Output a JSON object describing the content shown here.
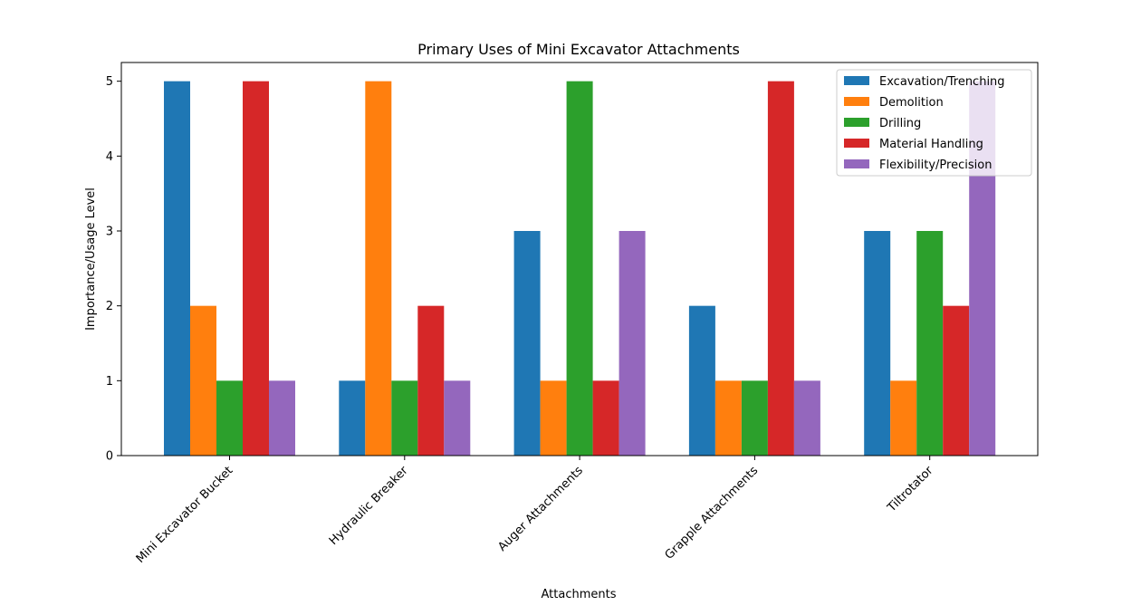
{
  "chart_data": {
    "type": "bar",
    "title": "Primary Uses of Mini Excavator Attachments",
    "xlabel": "Attachments",
    "ylabel": "Importance/Usage Level",
    "ylim": [
      0,
      5.25
    ],
    "yticks": [
      0,
      1,
      2,
      3,
      4,
      5
    ],
    "grid": false,
    "legend_position": "top-right",
    "categories": [
      "Mini Excavator Bucket",
      "Hydraulic Breaker",
      "Auger Attachments",
      "Grapple Attachments",
      "Tiltrotator"
    ],
    "series": [
      {
        "name": "Excavation/Trenching",
        "color": "#1f77b4",
        "values": [
          5,
          1,
          3,
          2,
          3
        ]
      },
      {
        "name": "Demolition",
        "color": "#ff7f0e",
        "values": [
          2,
          5,
          1,
          1,
          1
        ]
      },
      {
        "name": "Drilling",
        "color": "#2ca02c",
        "values": [
          1,
          1,
          5,
          1,
          3
        ]
      },
      {
        "name": "Material Handling",
        "color": "#d62728",
        "values": [
          5,
          2,
          1,
          5,
          2
        ]
      },
      {
        "name": "Flexibility/Precision",
        "color": "#9467bd",
        "values": [
          1,
          1,
          3,
          1,
          5
        ]
      }
    ]
  }
}
